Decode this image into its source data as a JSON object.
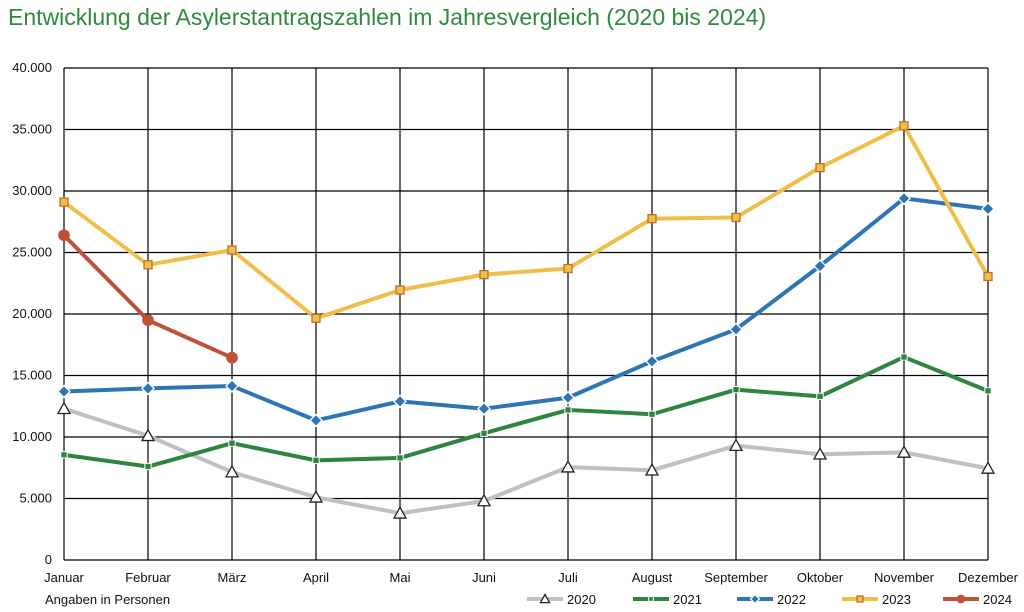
{
  "chart_data": {
    "type": "line",
    "title": "Entwicklung der Asylerstantragszahlen im Jahresvergleich (2020 bis 2024)",
    "unit_note": "Angaben in Personen",
    "categories": [
      "Januar",
      "Februar",
      "März",
      "April",
      "Mai",
      "Juni",
      "Juli",
      "August",
      "September",
      "Oktober",
      "November",
      "Dezember"
    ],
    "ylim": [
      0,
      40000
    ],
    "yticks": [
      0,
      5000,
      10000,
      15000,
      20000,
      25000,
      30000,
      35000,
      40000
    ],
    "ytick_labels": [
      "0",
      "5.000",
      "10.000",
      "15.000",
      "20.000",
      "25.000",
      "30.000",
      "35.000",
      "40.000"
    ],
    "grid": true,
    "legend_position": "bottom-right",
    "series": [
      {
        "name": "2020",
        "color": "#c0c0c0",
        "marker": "triangle",
        "values": [
          12300,
          10100,
          7150,
          5100,
          3800,
          4800,
          7550,
          7300,
          9300,
          8600,
          8750,
          7450
        ]
      },
      {
        "name": "2021",
        "color": "#2e8540",
        "marker": "square",
        "values": [
          8550,
          7600,
          9500,
          8100,
          8300,
          10300,
          12200,
          11850,
          13850,
          13300,
          16500,
          13750
        ]
      },
      {
        "name": "2022",
        "color": "#2e75b6",
        "marker": "diamond",
        "values": [
          13700,
          13950,
          14150,
          11350,
          12900,
          12300,
          13200,
          16150,
          18750,
          23900,
          29400,
          28550
        ]
      },
      {
        "name": "2023",
        "color": "#f0bf4a",
        "marker": "square-orange",
        "values": [
          29100,
          24000,
          25200,
          19650,
          21950,
          23200,
          23700,
          27750,
          27850,
          31900,
          35300,
          23050
        ]
      },
      {
        "name": "2024",
        "color": "#c0503a",
        "marker": "circle",
        "values": [
          26400,
          19500,
          16450,
          null,
          null,
          null,
          null,
          null,
          null,
          null,
          null,
          null
        ]
      }
    ]
  }
}
